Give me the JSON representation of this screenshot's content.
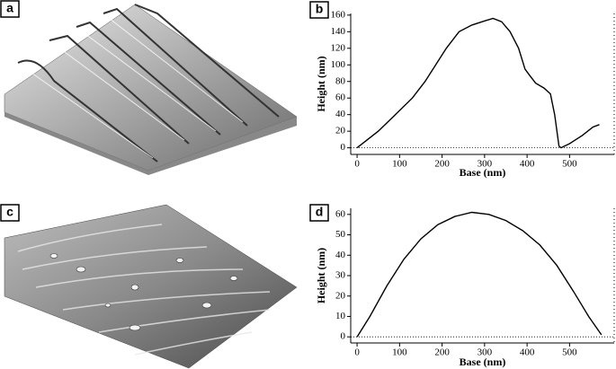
{
  "panels": [
    "a",
    "b",
    "c",
    "d"
  ],
  "chart_data": [
    {
      "type": "line",
      "xlabel": "Base (nm)",
      "ylabel": "Height (nm)",
      "color": "#000000",
      "x": [
        0,
        50,
        90,
        130,
        160,
        185,
        210,
        240,
        270,
        300,
        320,
        340,
        360,
        380,
        395,
        405,
        420,
        440,
        455,
        465,
        475,
        480,
        500,
        530,
        555,
        570
      ],
      "values": [
        0,
        20,
        40,
        60,
        80,
        100,
        120,
        140,
        148,
        153,
        156,
        152,
        140,
        120,
        95,
        88,
        78,
        72,
        65,
        40,
        2,
        0,
        5,
        15,
        25,
        28
      ],
      "xlim": [
        -15,
        605
      ],
      "ylim": [
        -8,
        162
      ],
      "xticks": [
        0,
        100,
        200,
        300,
        400,
        500
      ],
      "yticks": [
        0,
        20,
        40,
        60,
        80,
        100,
        120,
        140,
        160
      ]
    },
    {
      "type": "line",
      "xlabel": "Base (nm)",
      "ylabel": "Height (nm)",
      "color": "#000000",
      "x": [
        0,
        30,
        70,
        110,
        150,
        190,
        230,
        270,
        310,
        350,
        390,
        430,
        470,
        510,
        545,
        575
      ],
      "values": [
        0,
        10,
        25,
        38,
        48,
        55,
        59,
        61,
        60,
        57,
        52,
        45,
        35,
        22,
        10,
        1
      ],
      "xlim": [
        -15,
        605
      ],
      "ylim": [
        -3,
        63
      ],
      "xticks": [
        0,
        100,
        200,
        300,
        400,
        500
      ],
      "yticks": [
        0,
        10,
        20,
        30,
        40,
        50,
        60
      ]
    }
  ]
}
